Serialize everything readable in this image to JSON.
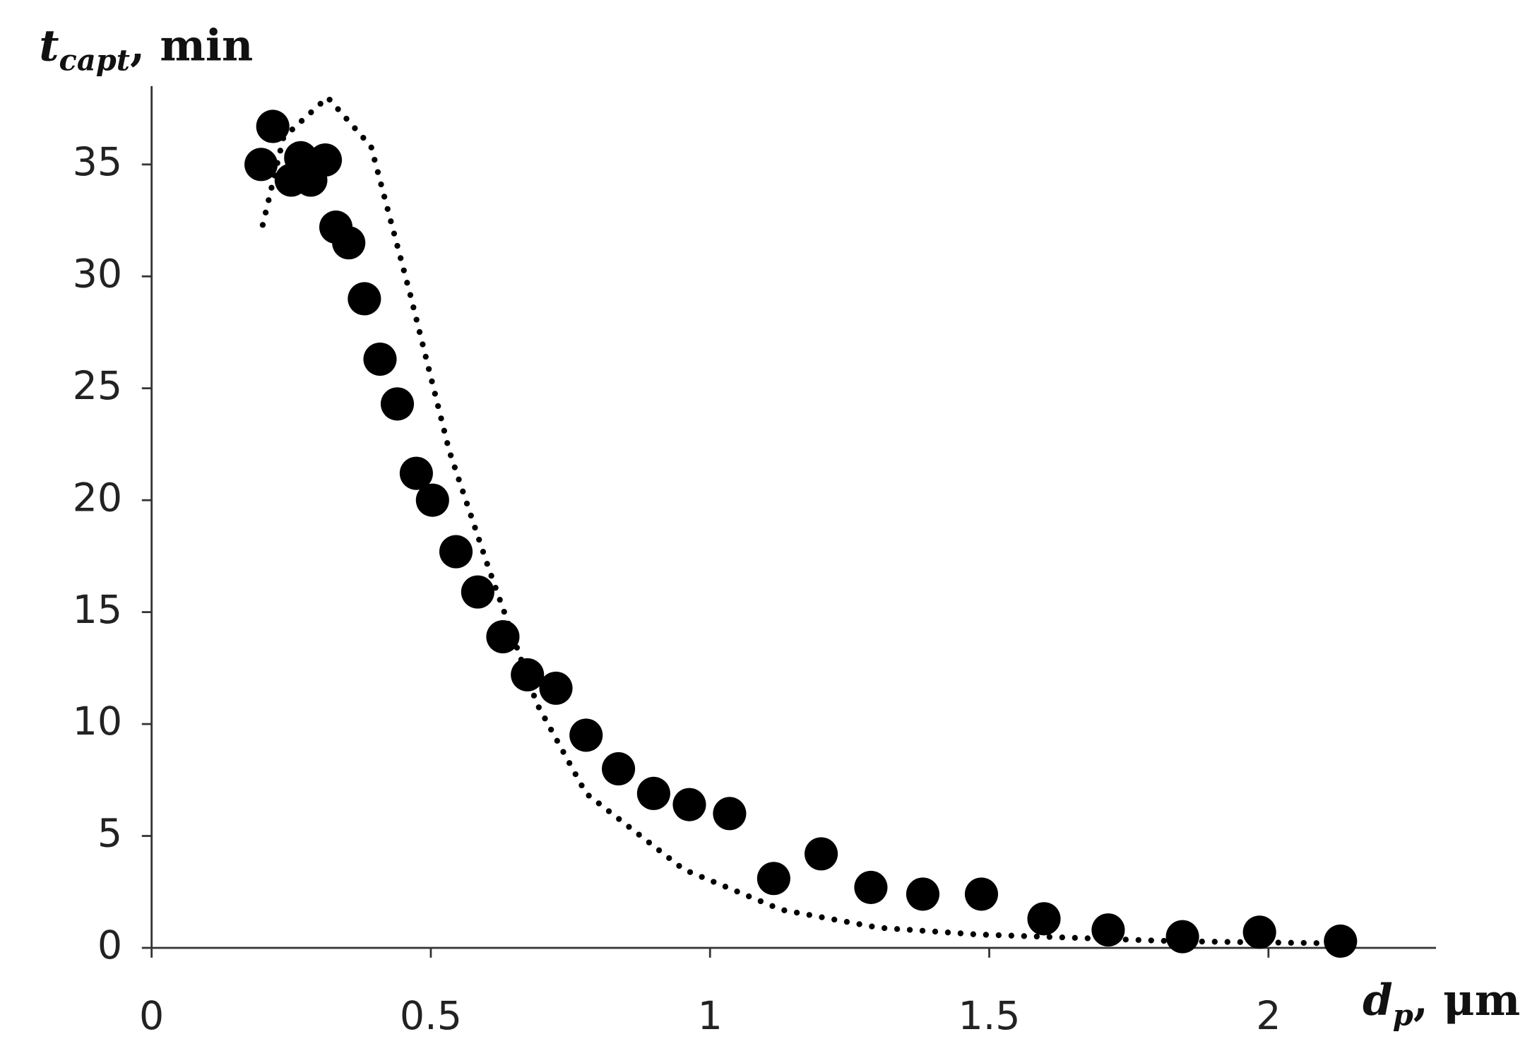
{
  "chart_data": {
    "type": "scatter",
    "x": [
      0.196,
      0.217,
      0.25,
      0.267,
      0.285,
      0.311,
      0.33,
      0.353,
      0.381,
      0.409,
      0.44,
      0.474,
      0.503,
      0.545,
      0.584,
      0.629,
      0.673,
      0.724,
      0.778,
      0.836,
      0.899,
      0.963,
      1.035,
      1.114,
      1.199,
      1.288,
      1.381,
      1.486,
      1.598,
      1.713,
      1.846,
      1.984,
      2.129
    ],
    "values": [
      35.0,
      36.7,
      34.3,
      35.3,
      34.3,
      35.2,
      32.2,
      31.5,
      29.0,
      26.3,
      24.3,
      21.2,
      20.0,
      17.7,
      15.9,
      13.9,
      12.2,
      11.6,
      9.5,
      8.0,
      6.9,
      6.4,
      6.0,
      3.1,
      4.2,
      2.7,
      2.4,
      2.4,
      1.3,
      0.8,
      0.5,
      0.7,
      0.3
    ],
    "color": "#000000",
    "trendline": {
      "x": [
        0.199,
        0.236,
        0.315,
        0.393,
        0.463,
        0.533,
        0.603,
        0.69,
        0.778,
        0.953,
        1.128,
        1.302,
        1.477,
        1.827,
        2.124
      ],
      "values": [
        32.3,
        36.2,
        38.0,
        35.8,
        29.2,
        22.2,
        17.0,
        10.9,
        6.9,
        3.5,
        1.7,
        0.9,
        0.6,
        0.3,
        0.2
      ],
      "color": "#000000"
    },
    "xlim": [
      0,
      2.3
    ],
    "ylim": [
      0,
      38.5
    ],
    "xticks": [
      0,
      0.5,
      1,
      1.5,
      2
    ],
    "yticks": [
      0,
      5,
      10,
      15,
      20,
      25,
      30,
      35
    ],
    "xlabel": {
      "symbol": "d",
      "subscript": "p",
      "suffix": ", μm"
    },
    "ylabel": {
      "symbol": "t",
      "subscript": "capt",
      "suffix": ", min"
    }
  }
}
